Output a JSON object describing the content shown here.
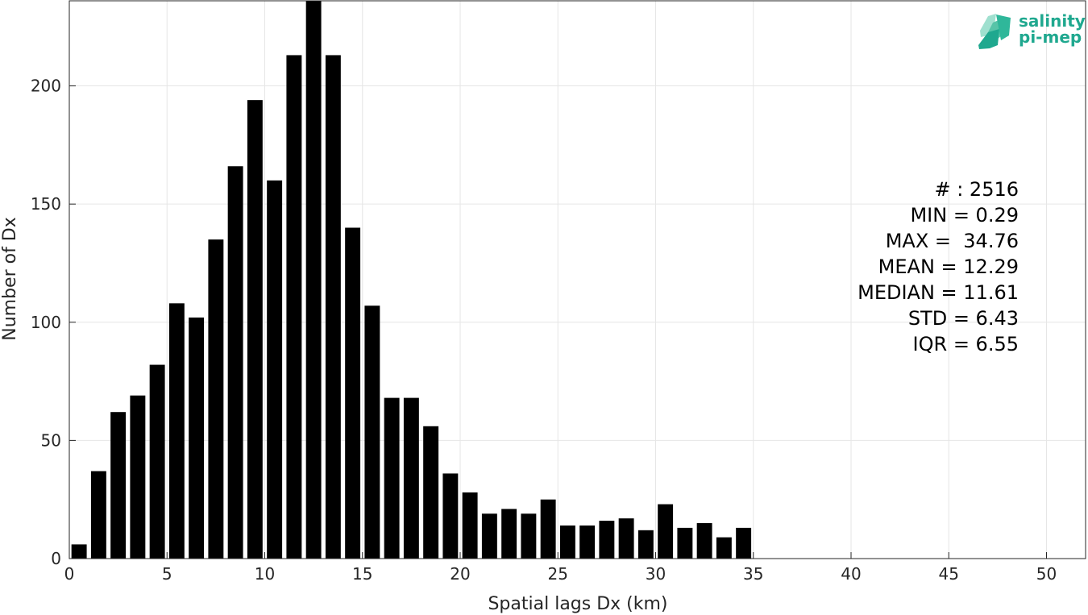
{
  "chart_data": {
    "type": "bar",
    "title": "",
    "xlabel": "Spatial lags Dx (km)",
    "ylabel": "Number of Dx",
    "xlim": [
      0,
      52
    ],
    "ylim": [
      0,
      236
    ],
    "xticks": [
      0,
      5,
      10,
      15,
      20,
      25,
      30,
      35,
      40,
      45,
      50
    ],
    "yticks": [
      0,
      50,
      100,
      150,
      200
    ],
    "grid": true,
    "bar_color": "#000000",
    "bin_width": 1,
    "bins": [
      {
        "x": 0.5,
        "value": 6
      },
      {
        "x": 1.5,
        "value": 37
      },
      {
        "x": 2.5,
        "value": 62
      },
      {
        "x": 3.5,
        "value": 69
      },
      {
        "x": 4.5,
        "value": 82
      },
      {
        "x": 5.5,
        "value": 108
      },
      {
        "x": 6.5,
        "value": 102
      },
      {
        "x": 7.5,
        "value": 135
      },
      {
        "x": 8.5,
        "value": 166
      },
      {
        "x": 9.5,
        "value": 194
      },
      {
        "x": 10.5,
        "value": 160
      },
      {
        "x": 11.5,
        "value": 213
      },
      {
        "x": 12.5,
        "value": 236
      },
      {
        "x": 13.5,
        "value": 213
      },
      {
        "x": 14.5,
        "value": 140
      },
      {
        "x": 15.5,
        "value": 107
      },
      {
        "x": 16.5,
        "value": 68
      },
      {
        "x": 17.5,
        "value": 68
      },
      {
        "x": 18.5,
        "value": 56
      },
      {
        "x": 19.5,
        "value": 36
      },
      {
        "x": 20.5,
        "value": 28
      },
      {
        "x": 21.5,
        "value": 19
      },
      {
        "x": 22.5,
        "value": 21
      },
      {
        "x": 23.5,
        "value": 19
      },
      {
        "x": 24.5,
        "value": 25
      },
      {
        "x": 25.5,
        "value": 14
      },
      {
        "x": 26.5,
        "value": 14
      },
      {
        "x": 27.5,
        "value": 16
      },
      {
        "x": 28.5,
        "value": 17
      },
      {
        "x": 29.5,
        "value": 12
      },
      {
        "x": 30.5,
        "value": 23
      },
      {
        "x": 31.5,
        "value": 13
      },
      {
        "x": 32.5,
        "value": 15
      },
      {
        "x": 33.5,
        "value": 9
      },
      {
        "x": 34.5,
        "value": 13
      }
    ],
    "annotations": [
      "# : 2516",
      "MIN = 0.29",
      "MAX =  34.76",
      "MEAN = 12.29",
      "MEDIAN = 11.61",
      "STD = 6.43",
      "IQR = 6.55"
    ]
  },
  "logo": {
    "line1": "salinity",
    "line2": "pi-mep",
    "color": "#1fa88f"
  }
}
